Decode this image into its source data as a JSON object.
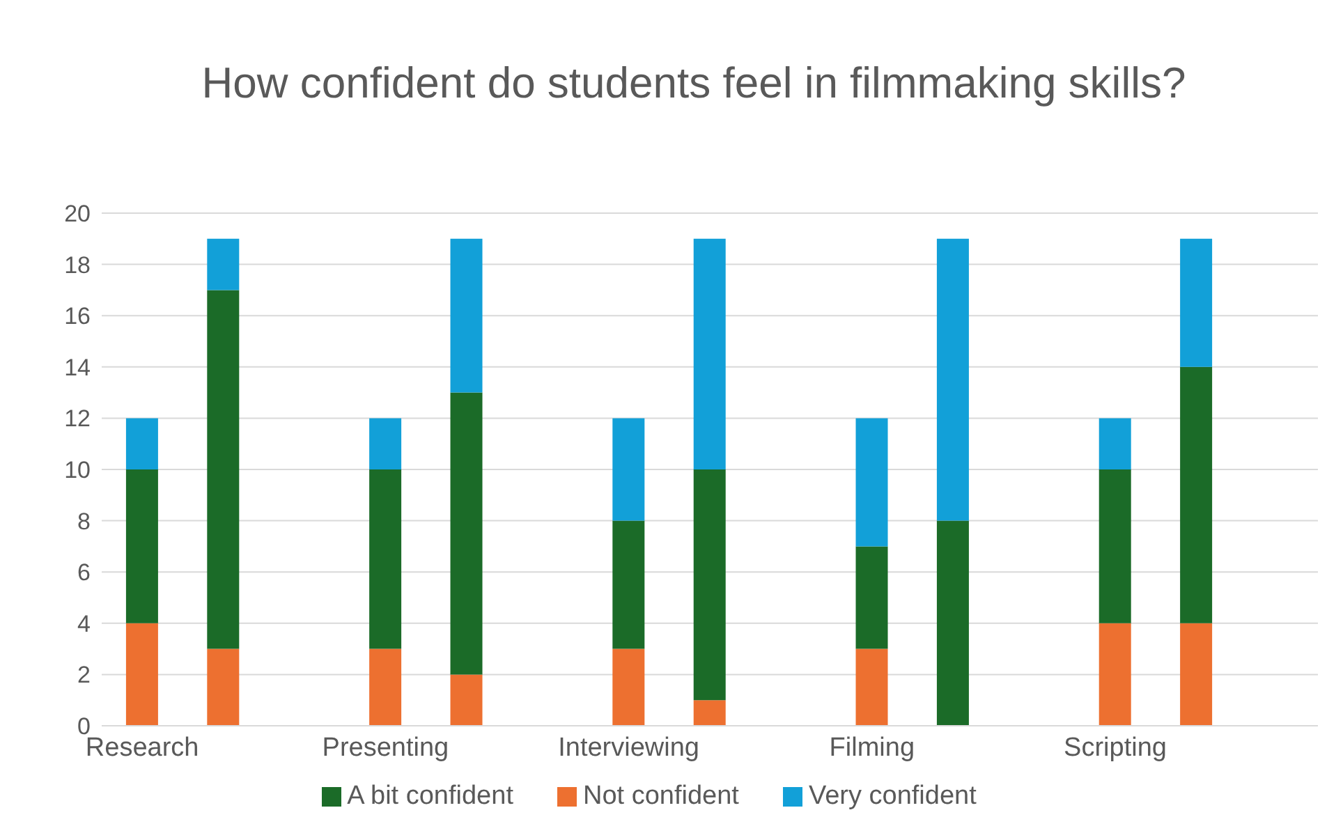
{
  "chart_data": {
    "type": "bar",
    "title": "How confident do students feel in filmmaking skills?",
    "categories": [
      "Research",
      null,
      null,
      "Presenting",
      null,
      null,
      "Interviewing",
      null,
      null,
      "Filming",
      null,
      null,
      "Scripting",
      null,
      null
    ],
    "stacked": true,
    "series": [
      {
        "name": "Not confident",
        "color": "#ed7030",
        "values": [
          4,
          3,
          null,
          3,
          2,
          null,
          3,
          1,
          null,
          3,
          0,
          null,
          4,
          4,
          null
        ]
      },
      {
        "name": "A bit confident",
        "color": "#1b6b28",
        "values": [
          6,
          14,
          null,
          7,
          11,
          null,
          5,
          9,
          null,
          4,
          8,
          null,
          6,
          10,
          null
        ]
      },
      {
        "name": "Very confident",
        "color": "#12a0d8",
        "values": [
          2,
          2,
          null,
          2,
          6,
          null,
          4,
          9,
          null,
          5,
          11,
          null,
          2,
          5,
          null
        ]
      }
    ],
    "ylim": [
      0,
      20
    ],
    "yticks": [
      0,
      2,
      4,
      6,
      8,
      10,
      12,
      14,
      16,
      18,
      20
    ],
    "grid": "y",
    "legend": "bottom"
  }
}
